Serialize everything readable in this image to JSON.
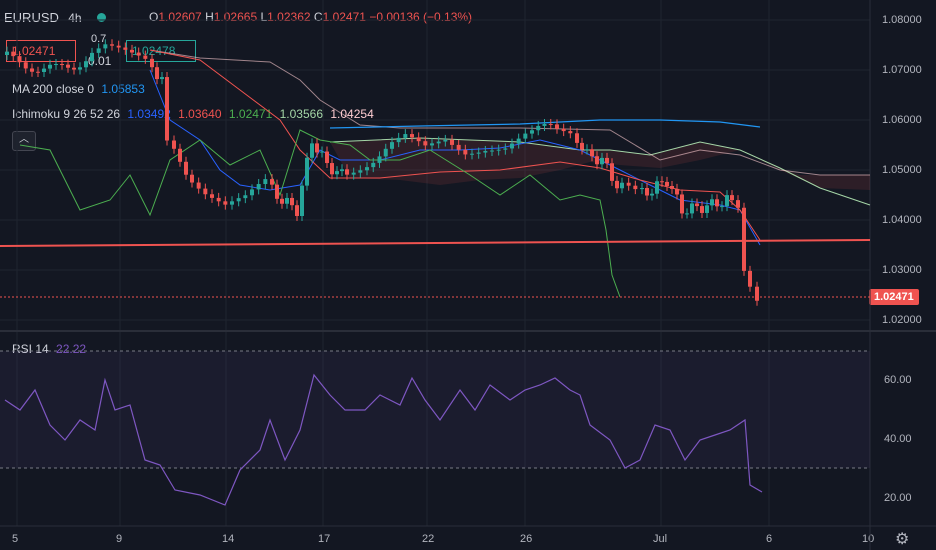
{
  "symbol": "EURUSD",
  "timeframe": "4h",
  "ohlc": {
    "o_label": "O",
    "o": "1.02607",
    "h_label": "H",
    "h": "1.02665",
    "l_label": "L",
    "l": "1.02362",
    "c_label": "C",
    "c": "1.02471",
    "change": "−0.00136 (−0.13%)"
  },
  "trade": {
    "sell": "1.02471",
    "spread_top": "0.7",
    "spread": "0.01",
    "buy": "1.02478"
  },
  "ma": {
    "label": "MA 200 close 0",
    "value": "1.05853"
  },
  "ichimoku": {
    "label": "Ichimoku 9 26 52 26",
    "values": [
      "1.03492",
      "1.03640",
      "1.02471",
      "1.03566",
      "1.04254"
    ],
    "colors": [
      "#2962ff",
      "#ef5350",
      "#4caf50",
      "#a5d6a7",
      "#ffcdd2"
    ]
  },
  "rsi": {
    "label": "RSI 14",
    "value": "22.22"
  },
  "price_axis": [
    "1.08000",
    "1.07000",
    "1.06000",
    "1.05000",
    "1.04000",
    "1.03000",
    "1.02000"
  ],
  "last_price": "1.02471",
  "rsi_axis": [
    "60.00",
    "40.00",
    "20.00"
  ],
  "time_axis": [
    "5",
    "9",
    "14",
    "17",
    "22",
    "26",
    "Jul",
    "6",
    "10"
  ],
  "colors": {
    "up": "#26a69a",
    "down": "#ef5350",
    "bg": "#131722",
    "rsi": "#7e57c2"
  },
  "icons": [
    "circle-dot-icon",
    "collapse-icon",
    "settings-icon"
  ]
}
